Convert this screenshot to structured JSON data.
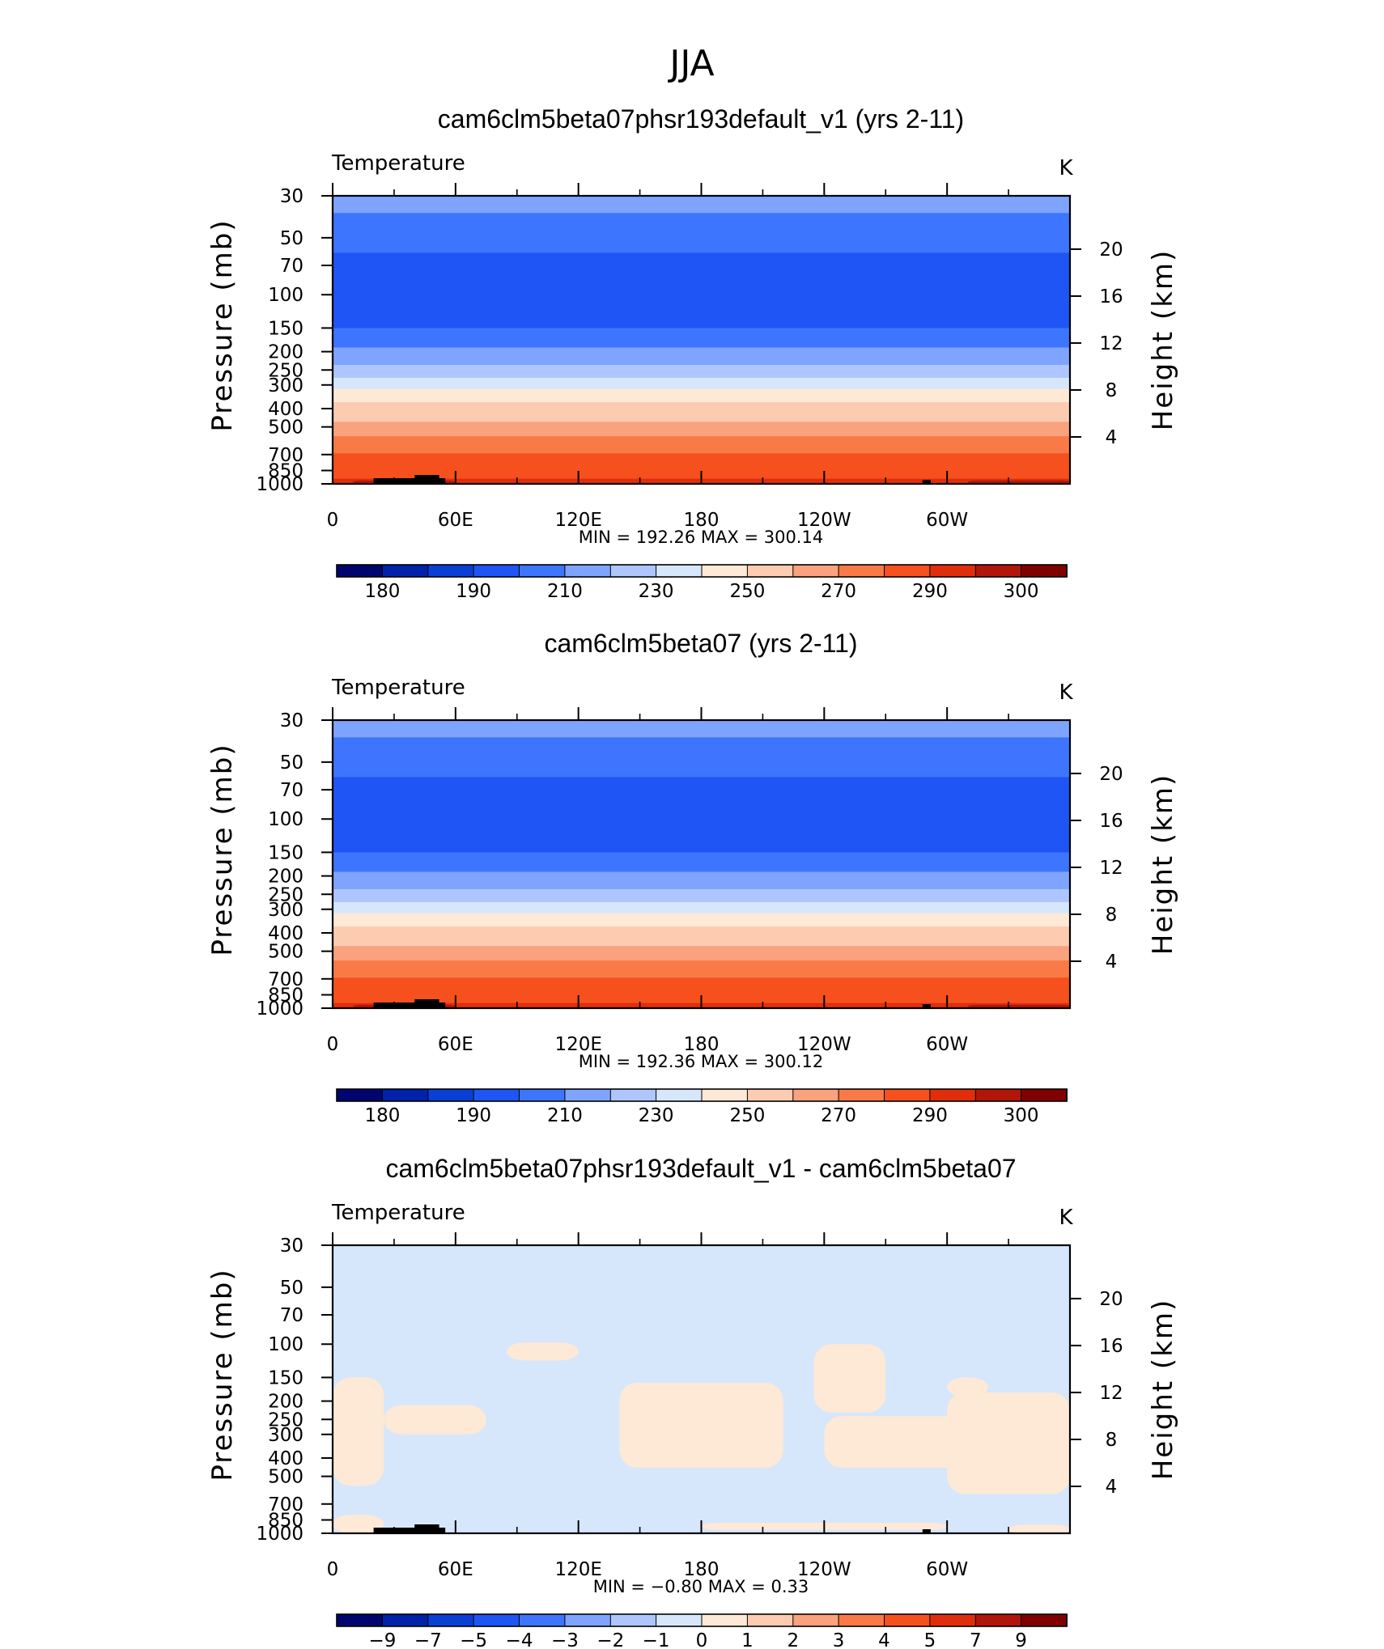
{
  "season": "JJA",
  "colors": {
    "abs_levels": [
      "#00056e",
      "#0022aa",
      "#0a3fd6",
      "#1f55f5",
      "#3d75ff",
      "#7ea4ff",
      "#aec6fd",
      "#d6e7fb",
      "#fde9d6",
      "#fccbb0",
      "#faa17d",
      "#f97a47",
      "#f6501e",
      "#e02e0c",
      "#b2160a",
      "#800000"
    ],
    "diff_levels": [
      "#00056e",
      "#0022aa",
      "#0a3fd6",
      "#1f55f5",
      "#3d75ff",
      "#7ea4ff",
      "#aec6fd",
      "#d6e7fb",
      "#fde9d6",
      "#fccbb0",
      "#faa17d",
      "#f97a47",
      "#f6501e",
      "#e02e0c",
      "#b2160a",
      "#800000"
    ],
    "topo": "#000000"
  },
  "chart_data": [
    {
      "type": "contour",
      "title": "cam6clm5beta07phsr193default_v1 (yrs 2-11)",
      "variable": "Temperature",
      "units": "K",
      "ylabel": "Pressure (mb)",
      "ylabel_right": "Height (km)",
      "x_ticks": [
        "0",
        "60E",
        "120E",
        "180",
        "120W",
        "60W"
      ],
      "x_range_deg": [
        0,
        360
      ],
      "y_ticks": [
        "30",
        "50",
        "70",
        "100",
        "150",
        "200",
        "250",
        "300",
        "400",
        "500",
        "700",
        "850",
        "1000"
      ],
      "y_tick_values": [
        30,
        50,
        70,
        100,
        150,
        200,
        250,
        300,
        400,
        500,
        700,
        850,
        1000
      ],
      "y_range_mb": [
        30,
        1000
      ],
      "height_ticks": [
        "20",
        "16",
        "12",
        "8",
        "4"
      ],
      "height_values_km": [
        20,
        16,
        12,
        8,
        4
      ],
      "stats": "MIN  =  192.26    MAX  =  300.14",
      "bands": [
        {
          "p": [
            30,
            37
          ],
          "level": 5
        },
        {
          "p": [
            37,
            60
          ],
          "level": 4
        },
        {
          "p": [
            60,
            150
          ],
          "level": 3
        },
        {
          "p": [
            150,
            190
          ],
          "level": 4
        },
        {
          "p": [
            190,
            235
          ],
          "level": 5
        },
        {
          "p": [
            235,
            275
          ],
          "level": 6
        },
        {
          "p": [
            275,
            315
          ],
          "level": 7
        },
        {
          "p": [
            315,
            370
          ],
          "level": 8
        },
        {
          "p": [
            370,
            470
          ],
          "level": 9
        },
        {
          "p": [
            470,
            560
          ],
          "level": 10
        },
        {
          "p": [
            560,
            690
          ],
          "level": 11
        },
        {
          "p": [
            690,
            940
          ],
          "level": 12
        },
        {
          "p": [
            940,
            1000
          ],
          "level": 13
        }
      ],
      "colorbar_labels": [
        "180",
        "190",
        "210",
        "230",
        "250",
        "270",
        "290",
        "300"
      ]
    },
    {
      "type": "contour",
      "title": "cam6clm5beta07 (yrs 2-11)",
      "variable": "Temperature",
      "units": "K",
      "ylabel": "Pressure (mb)",
      "ylabel_right": "Height (km)",
      "x_ticks": [
        "0",
        "60E",
        "120E",
        "180",
        "120W",
        "60W"
      ],
      "x_range_deg": [
        0,
        360
      ],
      "y_ticks": [
        "30",
        "50",
        "70",
        "100",
        "150",
        "200",
        "250",
        "300",
        "400",
        "500",
        "700",
        "850",
        "1000"
      ],
      "y_tick_values": [
        30,
        50,
        70,
        100,
        150,
        200,
        250,
        300,
        400,
        500,
        700,
        850,
        1000
      ],
      "y_range_mb": [
        30,
        1000
      ],
      "height_ticks": [
        "20",
        "16",
        "12",
        "8",
        "4"
      ],
      "height_values_km": [
        20,
        16,
        12,
        8,
        4
      ],
      "stats": "MIN  =  192.36    MAX  =  300.12",
      "bands": [
        {
          "p": [
            30,
            37
          ],
          "level": 5
        },
        {
          "p": [
            37,
            60
          ],
          "level": 4
        },
        {
          "p": [
            60,
            150
          ],
          "level": 3
        },
        {
          "p": [
            150,
            190
          ],
          "level": 4
        },
        {
          "p": [
            190,
            235
          ],
          "level": 5
        },
        {
          "p": [
            235,
            275
          ],
          "level": 6
        },
        {
          "p": [
            275,
            315
          ],
          "level": 7
        },
        {
          "p": [
            315,
            370
          ],
          "level": 8
        },
        {
          "p": [
            370,
            470
          ],
          "level": 9
        },
        {
          "p": [
            470,
            560
          ],
          "level": 10
        },
        {
          "p": [
            560,
            690
          ],
          "level": 11
        },
        {
          "p": [
            690,
            940
          ],
          "level": 12
        },
        {
          "p": [
            940,
            1000
          ],
          "level": 13
        }
      ],
      "colorbar_labels": [
        "180",
        "190",
        "210",
        "230",
        "250",
        "270",
        "290",
        "300"
      ]
    },
    {
      "type": "contour",
      "title": "cam6clm5beta07phsr193default_v1 - cam6clm5beta07",
      "variable": "Temperature",
      "units": "K",
      "ylabel": "Pressure (mb)",
      "ylabel_right": "Height (km)",
      "x_ticks": [
        "0",
        "60E",
        "120E",
        "180",
        "120W",
        "60W"
      ],
      "x_range_deg": [
        0,
        360
      ],
      "y_ticks": [
        "30",
        "50",
        "70",
        "100",
        "150",
        "200",
        "250",
        "300",
        "400",
        "500",
        "700",
        "850",
        "1000"
      ],
      "y_tick_values": [
        30,
        50,
        70,
        100,
        150,
        200,
        250,
        300,
        400,
        500,
        700,
        850,
        1000
      ],
      "y_range_mb": [
        30,
        1000
      ],
      "height_ticks": [
        "20",
        "16",
        "12",
        "8",
        "4"
      ],
      "height_values_km": [
        20,
        16,
        12,
        8,
        4
      ],
      "stats": "MIN  =    −0.80   MAX  =      0.33",
      "background_level": 7,
      "positive_level": 8,
      "positive_regions": [
        {
          "lon": [
            0,
            25
          ],
          "p": [
            150,
            560
          ]
        },
        {
          "lon": [
            25,
            75
          ],
          "p": [
            210,
            300
          ]
        },
        {
          "lon": [
            140,
            220
          ],
          "p": [
            160,
            450
          ]
        },
        {
          "lon": [
            235,
            270
          ],
          "p": [
            100,
            230
          ]
        },
        {
          "lon": [
            240,
            330
          ],
          "p": [
            240,
            450
          ]
        },
        {
          "lon": [
            300,
            360
          ],
          "p": [
            180,
            620
          ]
        },
        {
          "lon": [
            85,
            120
          ],
          "p": [
            98,
            122
          ]
        },
        {
          "lon": [
            300,
            320
          ],
          "p": [
            150,
            190
          ]
        },
        {
          "lon": [
            180,
            300
          ],
          "p": [
            880,
            960
          ]
        },
        {
          "lon": [
            0,
            25
          ],
          "p": [
            800,
            1000
          ]
        },
        {
          "lon": [
            330,
            360
          ],
          "p": [
            900,
            1000
          ]
        }
      ],
      "colorbar_labels": [
        "−9",
        "−7",
        "−5",
        "−4",
        "−3",
        "−2",
        "−1",
        "0",
        "1",
        "2",
        "3",
        "4",
        "5",
        "7",
        "9"
      ]
    }
  ]
}
